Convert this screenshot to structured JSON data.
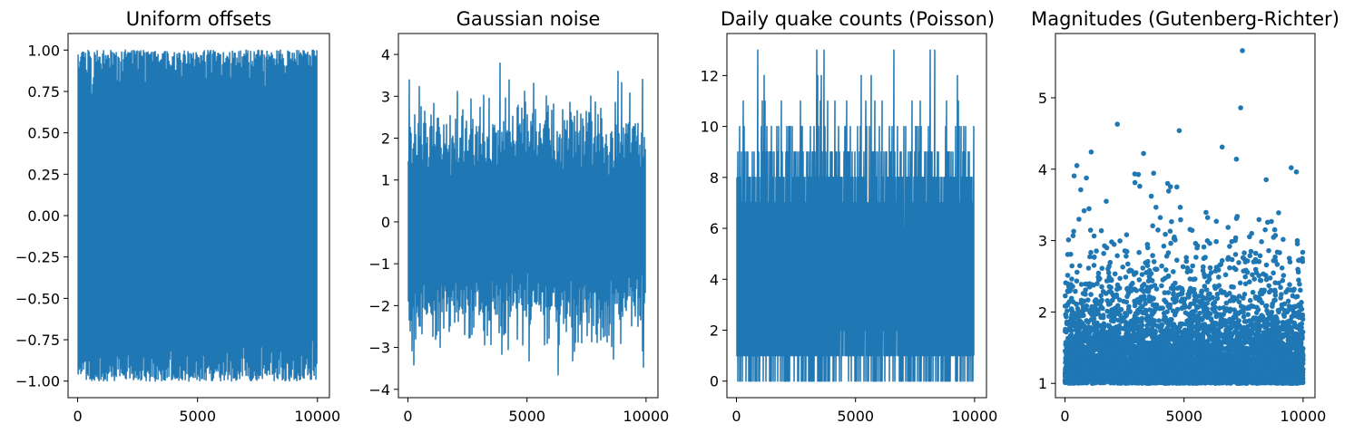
{
  "figure": {
    "series_color": "#1f77b4",
    "axes_color": "#000000",
    "background": "#ffffff"
  },
  "chart_data": [
    {
      "type": "line",
      "title": "Uniform offsets",
      "xlabel": "",
      "ylabel": "",
      "xlim": [
        -400,
        10500
      ],
      "ylim": [
        -1.1,
        1.1
      ],
      "x_ticks": [
        0,
        5000,
        10000
      ],
      "x_tick_labels": [
        "0",
        "5000",
        "10000"
      ],
      "y_ticks": [
        1.0,
        0.75,
        0.5,
        0.25,
        0.0,
        -0.25,
        -0.5,
        -0.75,
        -1.0
      ],
      "y_tick_labels": [
        "1.00",
        "0.75",
        "0.50",
        "0.25",
        "0.00",
        "−0.25",
        "−0.50",
        "−0.75",
        "−1.00"
      ],
      "grid": false,
      "series": [
        {
          "n_points": 10000,
          "x_range": [
            0,
            9999
          ],
          "y_range": [
            -1.0,
            1.0
          ],
          "distribution": "uniform",
          "color": "#1f77b4"
        }
      ]
    },
    {
      "type": "line",
      "title": "Gaussian noise",
      "xlabel": "",
      "ylabel": "",
      "xlim": [
        -400,
        10500
      ],
      "ylim": [
        -4.2,
        4.5
      ],
      "x_ticks": [
        0,
        5000,
        10000
      ],
      "x_tick_labels": [
        "0",
        "5000",
        "10000"
      ],
      "y_ticks": [
        4,
        3,
        2,
        1,
        0,
        -1,
        -2,
        -3,
        -4
      ],
      "y_tick_labels": [
        "4",
        "3",
        "2",
        "1",
        "0",
        "−1",
        "−2",
        "−3",
        "−4"
      ],
      "grid": false,
      "series": [
        {
          "n_points": 10000,
          "x_range": [
            0,
            9999
          ],
          "y_range": [
            -3.9,
            4.2
          ],
          "distribution": "gaussian",
          "mean": 0,
          "std": 1,
          "color": "#1f77b4"
        }
      ]
    },
    {
      "type": "line",
      "title": "Daily quake counts (Poisson)",
      "xlabel": "",
      "ylabel": "",
      "xlim": [
        -400,
        10500
      ],
      "ylim": [
        -0.65,
        13.65
      ],
      "x_ticks": [
        0,
        5000,
        10000
      ],
      "x_tick_labels": [
        "0",
        "5000",
        "10000"
      ],
      "y_ticks": [
        12,
        10,
        8,
        6,
        4,
        2,
        0
      ],
      "y_tick_labels": [
        "12",
        "10",
        "8",
        "6",
        "4",
        "2",
        "0"
      ],
      "grid": false,
      "series": [
        {
          "n_points": 10000,
          "x_range": [
            0,
            9999
          ],
          "y_range": [
            0,
            13
          ],
          "distribution": "poisson",
          "mean": 4,
          "color": "#1f77b4"
        }
      ]
    },
    {
      "type": "scatter",
      "title": "Magnitudes (Gutenberg-Richter)",
      "xlabel": "",
      "ylabel": "",
      "xlim": [
        -400,
        10500
      ],
      "ylim": [
        0.8,
        5.9
      ],
      "x_ticks": [
        0,
        5000,
        10000
      ],
      "x_tick_labels": [
        "0",
        "5000",
        "10000"
      ],
      "y_ticks": [
        5,
        4,
        3,
        2,
        1
      ],
      "y_tick_labels": [
        "5",
        "4",
        "3",
        "2",
        "1"
      ],
      "grid": false,
      "series": [
        {
          "n_points": 10000,
          "x_range": [
            0,
            9999
          ],
          "y_range": [
            1.0,
            5.66
          ],
          "distribution": "exponential above minimum magnitude",
          "min_magnitude": 1.0,
          "color": "#1f77b4",
          "notable_points": [
            {
              "x": 7450,
              "y": 5.66
            },
            {
              "x": 7380,
              "y": 4.86
            },
            {
              "x": 2200,
              "y": 4.63
            },
            {
              "x": 4800,
              "y": 4.54
            },
            {
              "x": 6600,
              "y": 4.31
            },
            {
              "x": 1100,
              "y": 4.24
            },
            {
              "x": 3300,
              "y": 4.22
            },
            {
              "x": 7200,
              "y": 4.14
            },
            {
              "x": 500,
              "y": 4.05
            },
            {
              "x": 9500,
              "y": 4.02
            }
          ]
        }
      ]
    }
  ]
}
